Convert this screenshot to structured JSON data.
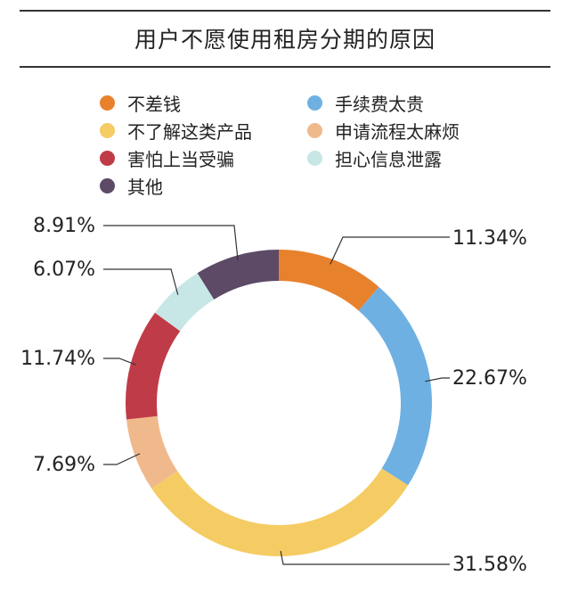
{
  "title": "用户不愿使用租房分期的原因",
  "chart_data": {
    "type": "donut",
    "title": "用户不愿使用租房分期的原因",
    "unit": "%",
    "series": [
      {
        "name": "不差钱",
        "value": 11.34,
        "label": "11.34%",
        "color": "#e8812c"
      },
      {
        "name": "手续费太贵",
        "value": 22.67,
        "label": "22.67%",
        "color": "#6fb0e2"
      },
      {
        "name": "不了解这类产品",
        "value": 31.58,
        "label": "31.58%",
        "color": "#f5cc63"
      },
      {
        "name": "申请流程太麻烦",
        "value": 7.69,
        "label": "7.69%",
        "color": "#f0b98c"
      },
      {
        "name": "害怕上当受骗",
        "value": 11.74,
        "label": "11.74%",
        "color": "#c03b48"
      },
      {
        "name": "担心信息泄露",
        "value": 6.07,
        "label": "6.07%",
        "color": "#c7e6e6"
      },
      {
        "name": "其他",
        "value": 8.91,
        "label": "8.91%",
        "color": "#5c4a66"
      }
    ]
  }
}
